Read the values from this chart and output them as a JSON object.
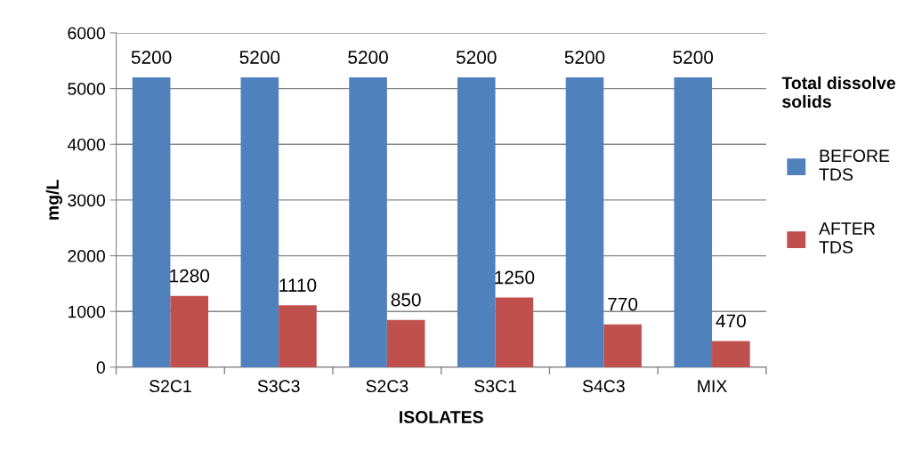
{
  "chart_data": {
    "type": "bar",
    "xlabel": "ISOLATES",
    "ylabel": "mg/L",
    "legend_title": "Total dissolve solids",
    "categories": [
      "S2C1",
      "S3C3",
      "S2C3",
      "S3C1",
      "S4C3",
      "MIX"
    ],
    "series": [
      {
        "name": "BEFORE TDS",
        "color": "#4f81bd",
        "values": [
          5200,
          5200,
          5200,
          5200,
          5200,
          5200
        ]
      },
      {
        "name": "AFTER TDS",
        "color": "#c0504d",
        "values": [
          1280,
          1110,
          850,
          1250,
          770,
          470
        ]
      }
    ],
    "ylim": [
      0,
      6000
    ],
    "yticks": [
      0,
      1000,
      2000,
      3000,
      4000,
      5000,
      6000
    ],
    "grid": "y",
    "legend": "right",
    "data_labels": true
  }
}
